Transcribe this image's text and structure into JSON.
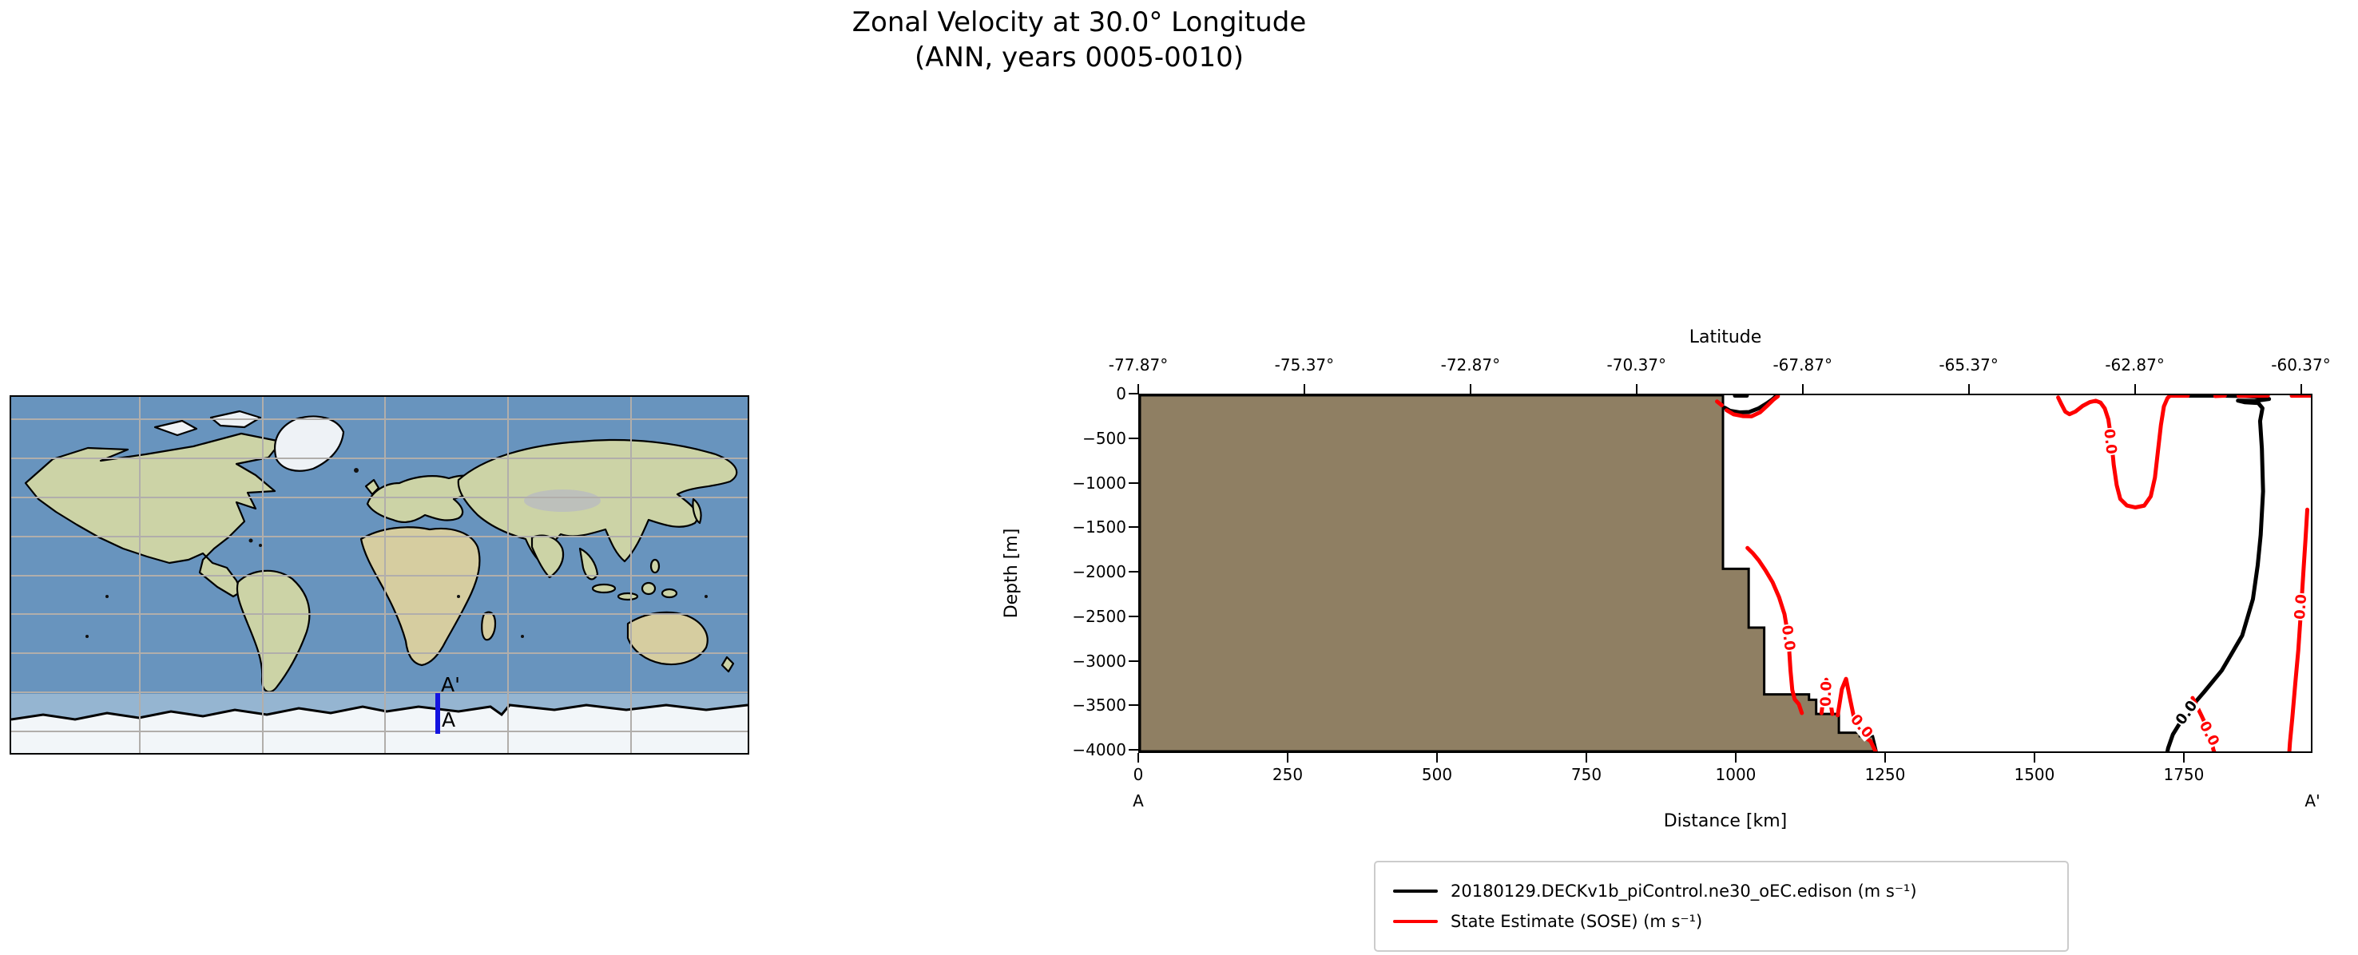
{
  "figure": {
    "title_line1": "Zonal Velocity at 30.0° Longitude",
    "title_line2": "(ANN, years 0005-0010)"
  },
  "map": {
    "point_label_start": "A",
    "point_label_end": "A'",
    "transect_color": "#1414e0"
  },
  "legend": {
    "entries": [
      {
        "label": "20180129.DECKv1b_piControl.ne30_oEC.edison (m s⁻¹)",
        "color": "#000000"
      },
      {
        "label": "State Estimate (SOSE) (m s⁻¹)",
        "color": "#ff0000"
      }
    ]
  },
  "chart_data": {
    "type": "contour",
    "title": "Zonal Velocity at 30.0° Longitude (ANN, years 0005-0010)",
    "contour_level_labeled": "0.0",
    "x_axis_bottom": {
      "label": "Distance [km]",
      "range": [
        0,
        1960
      ],
      "ticks": [
        0,
        250,
        500,
        750,
        1000,
        1250,
        1500,
        1750
      ],
      "start_point": "A",
      "end_point": "A'"
    },
    "x_axis_top": {
      "label": "Latitude",
      "ticks": [
        {
          "label": "-77.87°",
          "km": 0
        },
        {
          "label": "-75.37°",
          "km": 278
        },
        {
          "label": "-72.87°",
          "km": 556
        },
        {
          "label": "-70.37°",
          "km": 834
        },
        {
          "label": "-67.87°",
          "km": 1112
        },
        {
          "label": "-65.37°",
          "km": 1390
        },
        {
          "label": "-62.87°",
          "km": 1668
        },
        {
          "label": "-60.37°",
          "km": 1946
        }
      ]
    },
    "y_axis": {
      "label": "Depth [m]",
      "range": [
        -4000,
        0
      ],
      "ticks": [
        {
          "label": "0",
          "m": 0
        },
        {
          "label": "−500",
          "m": -500
        },
        {
          "label": "−1000",
          "m": -1000
        },
        {
          "label": "−1500",
          "m": -1500
        },
        {
          "label": "−2000",
          "m": -2000
        },
        {
          "label": "−2500",
          "m": -2500
        },
        {
          "label": "−3000",
          "m": -3000
        },
        {
          "label": "−3500",
          "m": -3500
        },
        {
          "label": "−4000",
          "m": -4000
        }
      ]
    },
    "bathymetry": {
      "color": "#8f7f63",
      "outline": "#000000",
      "polygon_km_m": [
        [
          0,
          0
        ],
        [
          976,
          0
        ],
        [
          976,
          -1950
        ],
        [
          1019,
          -1950
        ],
        [
          1019,
          -2610
        ],
        [
          1045,
          -2610
        ],
        [
          1045,
          -3360
        ],
        [
          1120,
          -3360
        ],
        [
          1120,
          -3420
        ],
        [
          1132,
          -3420
        ],
        [
          1132,
          -3580
        ],
        [
          1170,
          -3580
        ],
        [
          1170,
          -3790
        ],
        [
          1205,
          -3790
        ],
        [
          1205,
          -3830
        ],
        [
          1227,
          -3830
        ],
        [
          1233,
          -3995
        ],
        [
          1233,
          -4000
        ],
        [
          0,
          -4000
        ]
      ]
    },
    "series": [
      {
        "name": "20180129.DECKv1b_piControl.ne30_oEC.edison (m s⁻¹)",
        "color": "#000000",
        "level": 0.0,
        "paths": [
          [
            [
              996,
              -5
            ],
            [
              1016,
              -5
            ]
          ],
          [
            [
              979,
              -140
            ],
            [
              988,
              -175
            ],
            [
              1004,
              -193
            ],
            [
              1020,
              -188
            ],
            [
              1036,
              -146
            ],
            [
              1049,
              -92
            ],
            [
              1059,
              -45
            ],
            [
              1065,
              -8
            ]
          ],
          [
            [
              1727,
              -5
            ],
            [
              1812,
              -5
            ],
            [
              1848,
              -8
            ],
            [
              1878,
              -18
            ],
            [
              1890,
              -42
            ],
            [
              1866,
              -64
            ],
            [
              1838,
              -60
            ],
            [
              1849,
              -78
            ],
            [
              1872,
              -88
            ],
            [
              1879,
              -145
            ],
            [
              1875,
              -290
            ],
            [
              1878,
              -600
            ],
            [
              1880,
              -1080
            ],
            [
              1876,
              -1570
            ],
            [
              1871,
              -1910
            ],
            [
              1863,
              -2290
            ],
            [
              1845,
              -2700
            ],
            [
              1811,
              -3090
            ],
            [
              1781,
              -3335
            ],
            [
              1752,
              -3560
            ],
            [
              1729,
              -3810
            ],
            [
              1721,
              -3965
            ],
            [
              1720,
              -4000
            ]
          ]
        ],
        "labels": [
          {
            "x_km": 1753,
            "depth_m": -3570,
            "text": "0.0",
            "rotation_deg": -54
          }
        ]
      },
      {
        "name": "State Estimate (SOSE) (m s⁻¹)",
        "color": "#ff0000",
        "level": 0.0,
        "paths": [
          [
            [
              966,
              -70
            ],
            [
              974,
              -112
            ]
          ],
          [
            [
              982,
              -168
            ],
            [
              994,
              -215
            ],
            [
              1009,
              -234
            ],
            [
              1024,
              -236
            ],
            [
              1038,
              -192
            ],
            [
              1050,
              -118
            ],
            [
              1060,
              -52
            ],
            [
              1068,
              -10
            ]
          ],
          [
            [
              1017,
              -1715
            ],
            [
              1026,
              -1775
            ],
            [
              1036,
              -1855
            ],
            [
              1047,
              -1965
            ],
            [
              1059,
              -2100
            ],
            [
              1070,
              -2270
            ],
            [
              1079,
              -2460
            ],
            [
              1084,
              -2660
            ],
            [
              1087,
              -2880
            ],
            [
              1089,
              -3090
            ],
            [
              1092,
              -3310
            ],
            [
              1096,
              -3415
            ],
            [
              1103,
              -3470
            ],
            [
              1108,
              -3570
            ]
          ],
          [
            [
              1141,
              -3570
            ],
            [
              1145,
              -3330
            ],
            [
              1149,
              -3195
            ],
            [
              1154,
              -3300
            ],
            [
              1157,
              -3490
            ],
            [
              1159,
              -3580
            ]
          ],
          [
            [
              1168,
              -3595
            ],
            [
              1175,
              -3300
            ],
            [
              1182,
              -3185
            ],
            [
              1189,
              -3420
            ],
            [
              1196,
              -3645
            ],
            [
              1204,
              -3775
            ],
            [
              1213,
              -3840
            ],
            [
              1223,
              -3885
            ],
            [
              1231,
              -3995
            ]
          ],
          [
            [
              1537,
              -25
            ],
            [
              1542,
              -95
            ],
            [
              1549,
              -185
            ],
            [
              1556,
              -213
            ],
            [
              1566,
              -183
            ],
            [
              1578,
              -120
            ],
            [
              1590,
              -77
            ],
            [
              1600,
              -62
            ],
            [
              1608,
              -83
            ],
            [
              1615,
              -148
            ],
            [
              1621,
              -270
            ],
            [
              1626,
              -500
            ],
            [
              1630,
              -780
            ],
            [
              1635,
              -1010
            ],
            [
              1641,
              -1165
            ],
            [
              1652,
              -1238
            ],
            [
              1666,
              -1260
            ],
            [
              1681,
              -1240
            ],
            [
              1692,
              -1135
            ],
            [
              1699,
              -925
            ],
            [
              1704,
              -630
            ],
            [
              1709,
              -335
            ],
            [
              1714,
              -125
            ],
            [
              1720,
              -32
            ],
            [
              1724,
              -6
            ],
            [
              1754,
              -6
            ]
          ],
          [
            [
              1800,
              -9
            ],
            [
              1816,
              -5
            ]
          ],
          [
            [
              1839,
              -8
            ],
            [
              1888,
              -5
            ]
          ],
          [
            [
              1928,
              -6
            ],
            [
              1959,
              -4
            ]
          ],
          [
            [
              1954,
              -1285
            ],
            [
              1951,
              -1620
            ],
            [
              1948,
              -1930
            ],
            [
              1945,
              -2250
            ],
            [
              1942,
              -2560
            ],
            [
              1939,
              -2860
            ],
            [
              1934,
              -3230
            ],
            [
              1929,
              -3620
            ],
            [
              1925,
              -3900
            ],
            [
              1924,
              -4000
            ]
          ],
          [
            [
              1762,
              -3400
            ],
            [
              1769,
              -3490
            ],
            [
              1777,
              -3600
            ],
            [
              1786,
              -3730
            ],
            [
              1793,
              -3870
            ],
            [
              1797,
              -3985
            ],
            [
              1798,
              -4000
            ]
          ]
        ],
        "labels": [
          {
            "x_km": 1084,
            "depth_m": -2730,
            "text": "0.0",
            "rotation_deg": 82
          },
          {
            "x_km": 1150,
            "depth_m": -3350,
            "text": "0.0",
            "rotation_deg": -88
          },
          {
            "x_km": 1207,
            "depth_m": -3720,
            "text": "0.0",
            "rotation_deg": 50
          },
          {
            "x_km": 1623,
            "depth_m": -520,
            "text": "0.0",
            "rotation_deg": 84
          },
          {
            "x_km": 1944,
            "depth_m": -2380,
            "text": "0.0",
            "rotation_deg": -86
          },
          {
            "x_km": 1789,
            "depth_m": -3800,
            "text": "0.0",
            "rotation_deg": 62
          }
        ]
      }
    ]
  }
}
